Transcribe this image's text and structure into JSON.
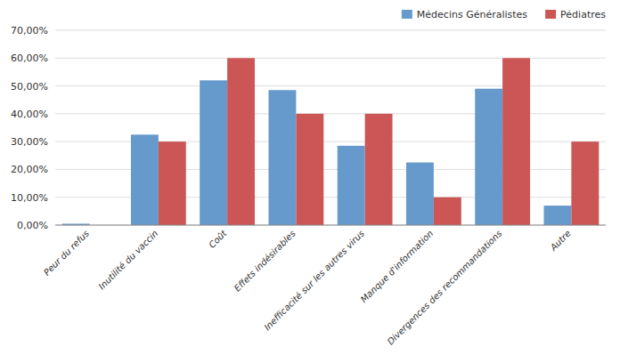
{
  "chart_data": {
    "type": "bar",
    "categories": [
      "Peur du refus",
      "Inutilité du vaccin",
      "Coût",
      "Effets indésirables",
      "Inefficacité sur les autres virus",
      "Manque d'information",
      "Divergences des recommandations",
      "Autre"
    ],
    "series": [
      {
        "name": "Médecins Généralistes",
        "color": "#6699CC",
        "values": [
          0.5,
          32.5,
          52.0,
          48.5,
          28.5,
          22.5,
          49.0,
          7.0
        ]
      },
      {
        "name": "Pédiatres",
        "color": "#CC5555",
        "values": [
          0.0,
          30.0,
          60.0,
          40.0,
          40.0,
          10.0,
          60.0,
          30.0
        ]
      }
    ],
    "ylim": [
      0,
      70
    ],
    "yticks": [
      {
        "value": 0,
        "label": "0,00%"
      },
      {
        "value": 10,
        "label": "10,00%"
      },
      {
        "value": 20,
        "label": "20,00%"
      },
      {
        "value": 30,
        "label": "30,00%"
      },
      {
        "value": 40,
        "label": "40,00%"
      },
      {
        "value": 50,
        "label": "50,00%"
      },
      {
        "value": 60,
        "label": "60,00%"
      },
      {
        "value": 70,
        "label": "70,00%"
      }
    ],
    "grid": true,
    "legend": "top"
  }
}
